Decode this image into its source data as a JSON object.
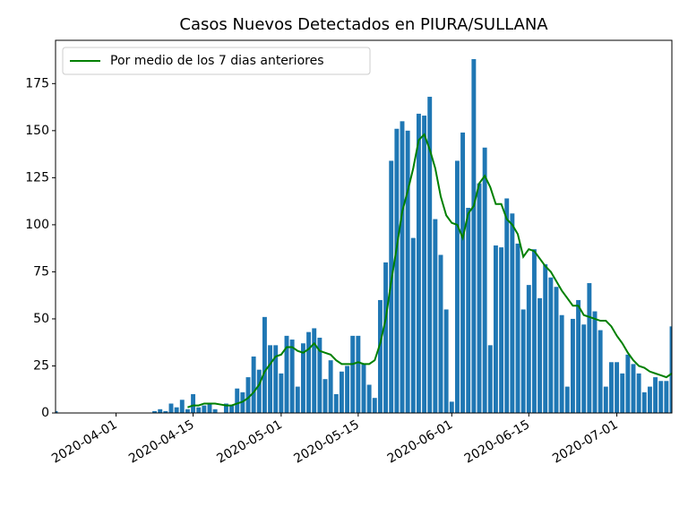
{
  "chart_data": {
    "type": "bar",
    "title": "Casos Nuevos Detectados en PIURA/SULLANA",
    "x": [
      "2020-03-21",
      "2020-03-22",
      "2020-03-23",
      "2020-03-24",
      "2020-03-25",
      "2020-03-26",
      "2020-03-27",
      "2020-03-28",
      "2020-03-29",
      "2020-03-30",
      "2020-03-31",
      "2020-04-01",
      "2020-04-02",
      "2020-04-03",
      "2020-04-04",
      "2020-04-05",
      "2020-04-06",
      "2020-04-07",
      "2020-04-08",
      "2020-04-09",
      "2020-04-10",
      "2020-04-11",
      "2020-04-12",
      "2020-04-13",
      "2020-04-14",
      "2020-04-15",
      "2020-04-16",
      "2020-04-17",
      "2020-04-18",
      "2020-04-19",
      "2020-04-20",
      "2020-04-21",
      "2020-04-22",
      "2020-04-23",
      "2020-04-24",
      "2020-04-25",
      "2020-04-26",
      "2020-04-27",
      "2020-04-28",
      "2020-04-29",
      "2020-04-30",
      "2020-05-01",
      "2020-05-02",
      "2020-05-03",
      "2020-05-04",
      "2020-05-05",
      "2020-05-06",
      "2020-05-07",
      "2020-05-08",
      "2020-05-09",
      "2020-05-10",
      "2020-05-11",
      "2020-05-12",
      "2020-05-13",
      "2020-05-14",
      "2020-05-15",
      "2020-05-16",
      "2020-05-17",
      "2020-05-18",
      "2020-05-19",
      "2020-05-20",
      "2020-05-21",
      "2020-05-22",
      "2020-05-23",
      "2020-05-24",
      "2020-05-25",
      "2020-05-26",
      "2020-05-27",
      "2020-05-28",
      "2020-05-29",
      "2020-05-30",
      "2020-05-31",
      "2020-06-01",
      "2020-06-02",
      "2020-06-03",
      "2020-06-04",
      "2020-06-05",
      "2020-06-06",
      "2020-06-07",
      "2020-06-08",
      "2020-06-09",
      "2020-06-10",
      "2020-06-11",
      "2020-06-12",
      "2020-06-13",
      "2020-06-14",
      "2020-06-15",
      "2020-06-16",
      "2020-06-17",
      "2020-06-18",
      "2020-06-19",
      "2020-06-20",
      "2020-06-21",
      "2020-06-22",
      "2020-06-23",
      "2020-06-24",
      "2020-06-25",
      "2020-06-26",
      "2020-06-27",
      "2020-06-28",
      "2020-06-29",
      "2020-06-30",
      "2020-07-01",
      "2020-07-02",
      "2020-07-03",
      "2020-07-04",
      "2020-07-05",
      "2020-07-06",
      "2020-07-07",
      "2020-07-08",
      "2020-07-09",
      "2020-07-10",
      "2020-07-11"
    ],
    "series": [
      {
        "type": "bar",
        "color": "#1f77b4",
        "values": [
          1,
          0,
          0,
          0,
          0,
          0,
          0,
          0,
          0,
          0,
          0,
          0,
          0,
          0,
          0,
          0,
          0,
          0,
          1,
          2,
          1,
          5,
          3,
          7,
          2,
          10,
          3,
          4,
          5,
          2,
          0,
          5,
          4,
          13,
          11,
          19,
          30,
          23,
          51,
          36,
          36,
          21,
          41,
          39,
          14,
          37,
          43,
          45,
          40,
          18,
          28,
          10,
          22,
          25,
          41,
          41,
          26,
          15,
          8,
          60,
          80,
          134,
          151,
          155,
          150,
          93,
          159,
          158,
          168,
          103,
          84,
          55,
          6,
          134,
          149,
          109,
          188,
          122,
          141,
          36,
          89,
          88,
          114,
          106,
          90,
          55,
          68,
          87,
          61,
          79,
          72,
          67,
          52,
          14,
          50,
          60,
          47,
          69,
          54,
          44,
          14,
          27,
          27,
          21,
          31,
          26,
          21,
          11,
          14,
          19,
          17,
          17,
          46
        ]
      },
      {
        "type": "line",
        "name": "Por medio de los 7 dias anteriores",
        "color": "#008000",
        "values": [
          null,
          null,
          null,
          null,
          null,
          null,
          null,
          null,
          null,
          null,
          null,
          null,
          null,
          null,
          null,
          null,
          null,
          null,
          null,
          null,
          null,
          null,
          null,
          null,
          3,
          4,
          4,
          5,
          5,
          5,
          4.5,
          4,
          4,
          5,
          6,
          8,
          11,
          15,
          22,
          26,
          30,
          31,
          35,
          35,
          33,
          32,
          34,
          37,
          33,
          32,
          31,
          28,
          26,
          26,
          26,
          27,
          26,
          26,
          28,
          37,
          50,
          70,
          88,
          107,
          118,
          130,
          145,
          148,
          140,
          130,
          115,
          105,
          101,
          100,
          93,
          106,
          110,
          122,
          126,
          120,
          111,
          111,
          103,
          100,
          95,
          83,
          87,
          86,
          82,
          78,
          75,
          70,
          65,
          61,
          57,
          57,
          52,
          51,
          50,
          49,
          49,
          46,
          41,
          37,
          32,
          28,
          25,
          24,
          22,
          21,
          20,
          19,
          21
        ]
      }
    ],
    "xlim": [
      "2020-03-21",
      "2020-07-11"
    ],
    "xticks": [
      "2020-04-01",
      "2020-04-15",
      "2020-05-01",
      "2020-05-15",
      "2020-06-01",
      "2020-06-15",
      "2020-07-01"
    ],
    "ylim": [
      0,
      198
    ],
    "yticks": [
      0,
      25,
      50,
      75,
      100,
      125,
      150,
      175
    ],
    "legend": "upper left"
  }
}
